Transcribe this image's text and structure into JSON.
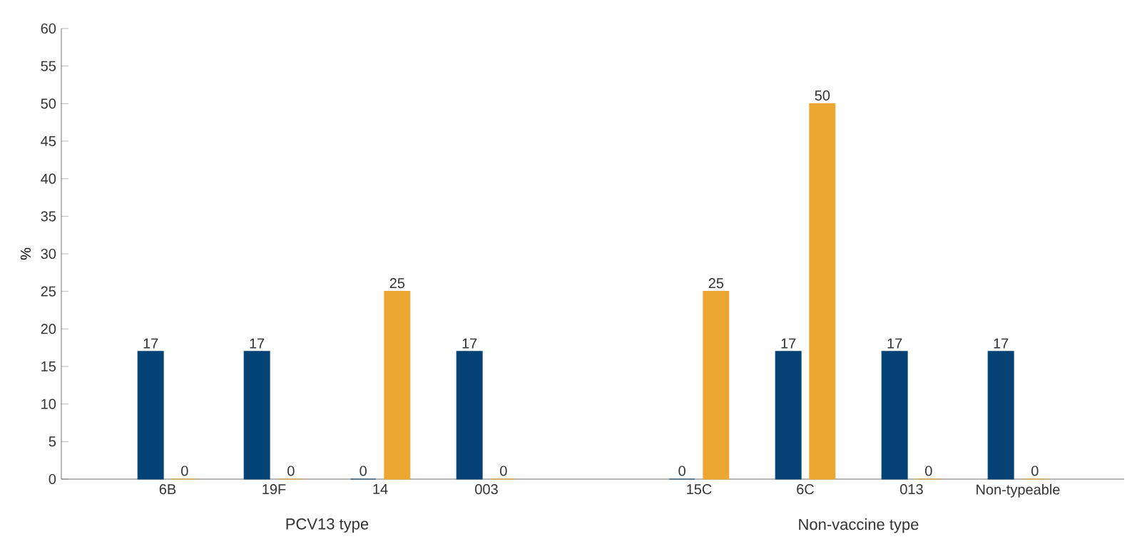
{
  "chart_data": {
    "type": "bar",
    "ylabel": "%",
    "categories": [
      "6B",
      "19F",
      "14",
      "003",
      null,
      "15C",
      "6C",
      "013",
      "Non-typeable"
    ],
    "series": [
      {
        "color": "#054377",
        "values": [
          17,
          17,
          0,
          17,
          null,
          0,
          17,
          17,
          17
        ]
      },
      {
        "color": "#eca733",
        "values": [
          0,
          0,
          25,
          0,
          null,
          25,
          50,
          0,
          0
        ]
      }
    ],
    "ylim": [
      0,
      60
    ],
    "yticks": [
      0,
      5,
      10,
      15,
      20,
      25,
      30,
      35,
      40,
      45,
      50,
      55,
      60
    ],
    "data_labels": true,
    "annotations": [
      "PCV13 type",
      "Non-vaccine type"
    ]
  }
}
